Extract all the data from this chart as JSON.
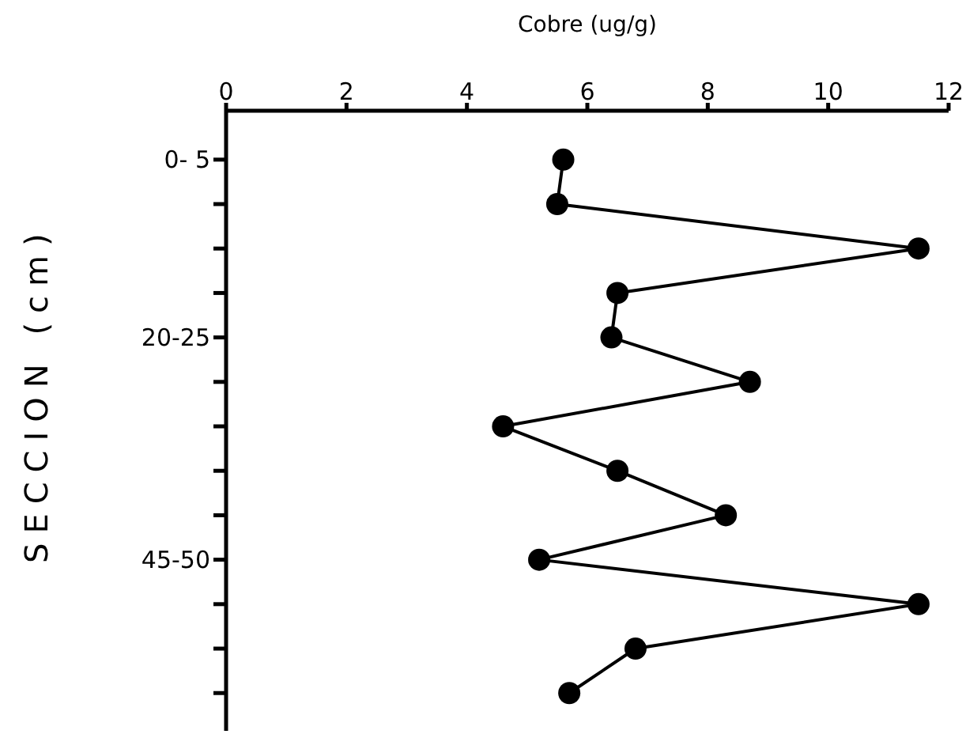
{
  "chart_data": {
    "type": "line",
    "orientation": "horizontal",
    "xlabel": "Cobre (ug/g)",
    "ylabel": "SECCION (cm)",
    "categories": [
      "0- 5",
      null,
      null,
      null,
      "20-25",
      null,
      null,
      null,
      null,
      "45-50",
      null,
      null,
      null
    ],
    "values": [
      5.6,
      5.5,
      11.5,
      6.5,
      6.4,
      8.7,
      4.6,
      6.5,
      8.3,
      5.2,
      11.5,
      6.8,
      5.7
    ],
    "color": "#000000",
    "xlim": [
      0,
      12
    ],
    "xticks": [
      0,
      2,
      4,
      6,
      8,
      10,
      12
    ],
    "marker": "circle",
    "grid": false
  }
}
